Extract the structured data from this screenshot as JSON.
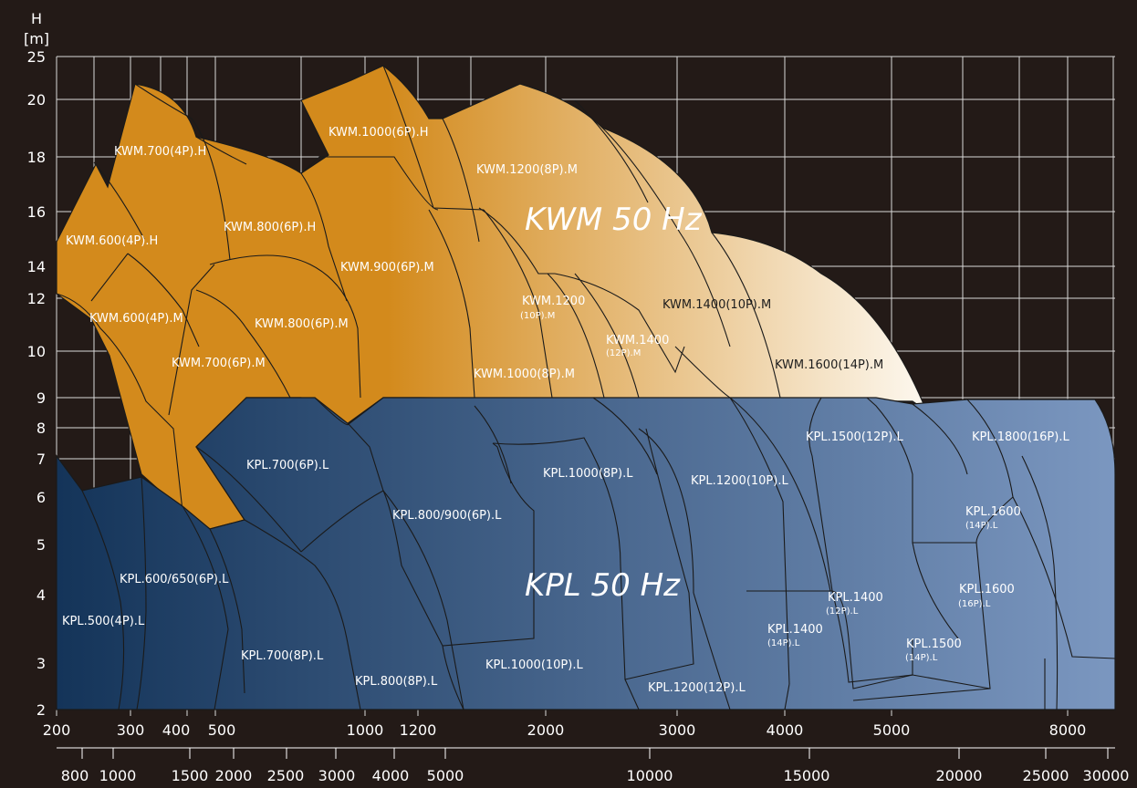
{
  "chart_data": {
    "type": "area",
    "title": "",
    "ylabel": "H",
    "yunit": "[m]",
    "ylim": [
      2,
      25
    ],
    "y_ticks": [
      2,
      3,
      4,
      5,
      6,
      7,
      8,
      9,
      10,
      12,
      14,
      16,
      18,
      20,
      25
    ],
    "x_ticks": [
      200,
      300,
      400,
      500,
      1000,
      1200,
      2000,
      3000,
      4000,
      5000,
      8000
    ],
    "x_ticks_secondary": [
      800,
      1000,
      1500,
      2000,
      2500,
      3000,
      4000,
      5000,
      10000,
      15000,
      20000,
      25000,
      30000
    ],
    "grid": true,
    "colors": {
      "kwm_dark": "#d38a1c",
      "kwm_light": "#fdf8ef",
      "kpl_dark": "#143459",
      "kpl_light": "#7b97c0",
      "background": "#231a17",
      "grid": "#d9d9d9"
    },
    "series": [
      {
        "name": "KWM 50 Hz"
      },
      {
        "name": "KPL 50 Hz"
      }
    ],
    "regions": [
      {
        "label": "KWM.700(4P).H"
      },
      {
        "label": "KWM.1000(6P).H"
      },
      {
        "label": "KWM.1200(8P).M"
      },
      {
        "label": "KWM.600(4P).H"
      },
      {
        "label": "KWM.800(6P).H"
      },
      {
        "label": "KWM.900(6P).M"
      },
      {
        "label": "KWM.600(4P).M"
      },
      {
        "label": "KWM.800(6P).M"
      },
      {
        "label": "KWM.700(6P).M"
      },
      {
        "label": "KWM.1200",
        "sub": "(10P).M"
      },
      {
        "label": "KWM.1400(10P).M"
      },
      {
        "label": "KWM.1400",
        "sub": "(12P).M"
      },
      {
        "label": "KWM.1000(8P).M"
      },
      {
        "label": "KWM.1600(14P).M"
      },
      {
        "label": "KPL.700(6P).L"
      },
      {
        "label": "KPL.1000(8P).L"
      },
      {
        "label": "KPL.1200(10P).L"
      },
      {
        "label": "KPL.1500(12P).L"
      },
      {
        "label": "KPL.1800(16P).L"
      },
      {
        "label": "KPL.800/900(6P).L"
      },
      {
        "label": "KPL.1600",
        "sub": "(14P).L"
      },
      {
        "label": "KPL.600/650(6P).L"
      },
      {
        "label": "KPL.1600",
        "sub": "(16P).L"
      },
      {
        "label": "KPL.1400",
        "sub": "(12P).L"
      },
      {
        "label": "KPL.500(4P).L"
      },
      {
        "label": "KPL.1400",
        "sub": "(14P).L"
      },
      {
        "label": "KPL.1500",
        "sub": "(14P).L"
      },
      {
        "label": "KPL.700(8P).L"
      },
      {
        "label": "KPL.1000(10P).L"
      },
      {
        "label": "KPL.800(8P).L"
      },
      {
        "label": "KPL.1200(12P).L"
      }
    ]
  }
}
